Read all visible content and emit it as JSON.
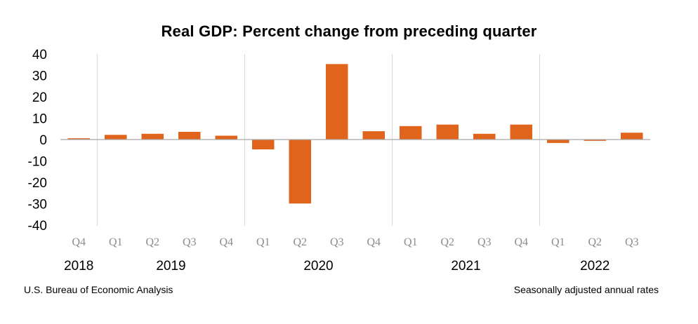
{
  "chart_data": {
    "type": "bar",
    "title": "Real GDP:  Percent change from preceding quarter",
    "ylim": [
      -40,
      40
    ],
    "yticks": [
      "40",
      "30",
      "20",
      "10",
      "0",
      "-10",
      "-20",
      "-30",
      "-40"
    ],
    "categories": [
      "Q4",
      "Q1",
      "Q2",
      "Q3",
      "Q4",
      "Q1",
      "Q2",
      "Q3",
      "Q4",
      "Q1",
      "Q2",
      "Q3",
      "Q4",
      "Q1",
      "Q2",
      "Q3"
    ],
    "values": [
      0.6,
      2.2,
      2.7,
      3.6,
      1.8,
      -4.6,
      -29.9,
      35.3,
      3.9,
      6.3,
      7.0,
      2.7,
      7.0,
      -1.6,
      -0.6,
      3.2
    ],
    "years": [
      {
        "label": "2018",
        "start": 0,
        "end": 0
      },
      {
        "label": "2019",
        "start": 1,
        "end": 4
      },
      {
        "label": "2020",
        "start": 5,
        "end": 8
      },
      {
        "label": "2021",
        "start": 9,
        "end": 12
      },
      {
        "label": "2022",
        "start": 13,
        "end": 15
      }
    ],
    "grid": false,
    "colors": {
      "bar": "#e0641c",
      "axis": "#a6a6a6",
      "divider": "#d9d9d9",
      "quarter_label": "#8c8c8c"
    }
  },
  "footer": {
    "source": "U.S. Bureau of Economic Analysis",
    "note": "Seasonally adjusted annual rates"
  }
}
